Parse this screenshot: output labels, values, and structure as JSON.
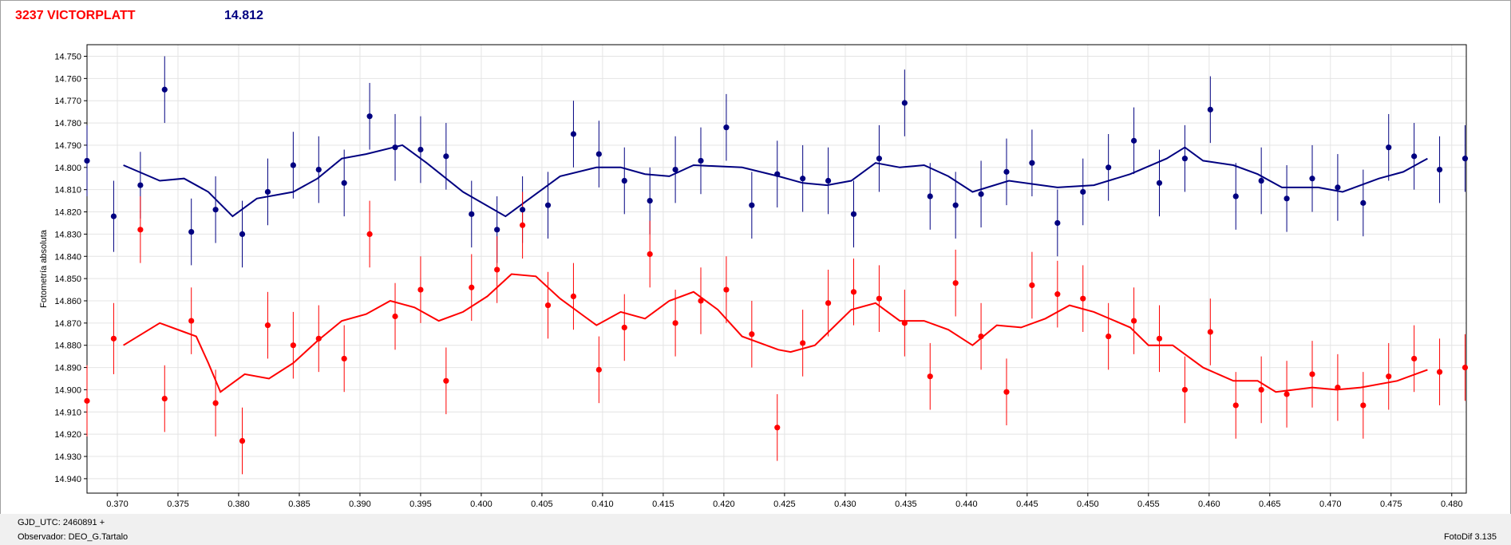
{
  "header": {
    "star_name": "3237 VICTORPLATT",
    "magnitude": "14.812"
  },
  "footer": {
    "gjd": "GJD_UTC: 2460891 +",
    "observer": "Observador: DEO_G.Tartalo",
    "version": "FotoDif 3.135"
  },
  "colors": {
    "blue_series": "#000080",
    "red_series": "#ff0000"
  },
  "chart_data": {
    "type": "scatter",
    "title": "",
    "xlabel": "",
    "ylabel": "Fotometría absoluta",
    "xlim": [
      0.3675,
      0.4812
    ],
    "ylim": [
      14.9465,
      14.7448
    ],
    "y_inverted": true,
    "grid": true,
    "x_ticks": [
      0.37,
      0.375,
      0.38,
      0.385,
      0.39,
      0.395,
      0.4,
      0.405,
      0.41,
      0.415,
      0.42,
      0.425,
      0.43,
      0.435,
      0.44,
      0.445,
      0.45,
      0.455,
      0.46,
      0.465,
      0.47,
      0.475,
      0.48
    ],
    "x_tick_labels": [
      "0.370",
      "0.375",
      "0.380",
      "0.385",
      "0.390",
      "0.395",
      "0.400",
      "0.405",
      "0.410",
      "0.415",
      "0.420",
      "0.425",
      "0.430",
      "0.435",
      "0.440",
      "0.445",
      "0.450",
      "0.455",
      "0.460",
      "0.465",
      "0.470",
      "0.475",
      "0.480"
    ],
    "y_ticks": [
      14.75,
      14.76,
      14.77,
      14.78,
      14.79,
      14.8,
      14.81,
      14.82,
      14.83,
      14.84,
      14.85,
      14.86,
      14.87,
      14.88,
      14.89,
      14.9,
      14.91,
      14.92,
      14.93,
      14.94
    ],
    "y_tick_labels": [
      "14.750",
      "14.760",
      "14.770",
      "14.780",
      "14.790",
      "14.800",
      "14.810",
      "14.820",
      "14.830",
      "14.840",
      "14.850",
      "14.860",
      "14.870",
      "14.880",
      "14.890",
      "14.900",
      "14.910",
      "14.920",
      "14.930",
      "14.940"
    ],
    "series": [
      {
        "color": "#000080",
        "points": [
          [
            0.3675,
            14.797,
            0.016
          ],
          [
            0.3697,
            14.822,
            0.016
          ],
          [
            0.3719,
            14.808,
            0.015
          ],
          [
            0.3739,
            14.765,
            0.015
          ],
          [
            0.3761,
            14.829,
            0.015
          ],
          [
            0.3781,
            14.819,
            0.015
          ],
          [
            0.3803,
            14.83,
            0.015
          ],
          [
            0.3824,
            14.811,
            0.015
          ],
          [
            0.3845,
            14.799,
            0.015
          ],
          [
            0.3866,
            14.801,
            0.015
          ],
          [
            0.3887,
            14.807,
            0.015
          ],
          [
            0.3908,
            14.777,
            0.015
          ],
          [
            0.3929,
            14.791,
            0.015
          ],
          [
            0.395,
            14.792,
            0.015
          ],
          [
            0.3971,
            14.795,
            0.015
          ],
          [
            0.3992,
            14.821,
            0.015
          ],
          [
            0.4013,
            14.828,
            0.015
          ],
          [
            0.4034,
            14.819,
            0.015
          ],
          [
            0.4055,
            14.817,
            0.015
          ],
          [
            0.4076,
            14.785,
            0.015
          ],
          [
            0.4097,
            14.794,
            0.015
          ],
          [
            0.4118,
            14.806,
            0.015
          ],
          [
            0.4139,
            14.815,
            0.015
          ],
          [
            0.416,
            14.801,
            0.015
          ],
          [
            0.4181,
            14.797,
            0.015
          ],
          [
            0.4202,
            14.782,
            0.015
          ],
          [
            0.4223,
            14.817,
            0.015
          ],
          [
            0.4244,
            14.803,
            0.015
          ],
          [
            0.4265,
            14.805,
            0.015
          ],
          [
            0.4286,
            14.806,
            0.015
          ],
          [
            0.4307,
            14.821,
            0.015
          ],
          [
            0.4328,
            14.796,
            0.015
          ],
          [
            0.4349,
            14.771,
            0.015
          ],
          [
            0.437,
            14.813,
            0.015
          ],
          [
            0.4391,
            14.817,
            0.015
          ],
          [
            0.4412,
            14.812,
            0.015
          ],
          [
            0.4433,
            14.802,
            0.015
          ],
          [
            0.4454,
            14.798,
            0.015
          ],
          [
            0.4475,
            14.825,
            0.015
          ],
          [
            0.4496,
            14.811,
            0.015
          ],
          [
            0.4517,
            14.8,
            0.015
          ],
          [
            0.4538,
            14.788,
            0.015
          ],
          [
            0.4559,
            14.807,
            0.015
          ],
          [
            0.458,
            14.796,
            0.015
          ],
          [
            0.4601,
            14.774,
            0.015
          ],
          [
            0.4622,
            14.813,
            0.015
          ],
          [
            0.4643,
            14.806,
            0.015
          ],
          [
            0.4664,
            14.814,
            0.015
          ],
          [
            0.4685,
            14.805,
            0.015
          ],
          [
            0.4706,
            14.809,
            0.015
          ],
          [
            0.4727,
            14.816,
            0.015
          ],
          [
            0.4748,
            14.791,
            0.015
          ],
          [
            0.4769,
            14.795,
            0.015
          ],
          [
            0.479,
            14.801,
            0.015
          ],
          [
            0.4811,
            14.796,
            0.015
          ]
        ],
        "fit": [
          [
            0.3705,
            14.799
          ],
          [
            0.3735,
            14.806
          ],
          [
            0.3755,
            14.805
          ],
          [
            0.3775,
            14.811
          ],
          [
            0.3795,
            14.822
          ],
          [
            0.3815,
            14.814
          ],
          [
            0.3845,
            14.811
          ],
          [
            0.3865,
            14.805
          ],
          [
            0.3885,
            14.796
          ],
          [
            0.3905,
            14.794
          ],
          [
            0.3935,
            14.79
          ],
          [
            0.3955,
            14.798
          ],
          [
            0.3985,
            14.811
          ],
          [
            0.402,
            14.822
          ],
          [
            0.4045,
            14.812
          ],
          [
            0.4065,
            14.804
          ],
          [
            0.4095,
            14.8
          ],
          [
            0.4115,
            14.8
          ],
          [
            0.4135,
            14.803
          ],
          [
            0.4155,
            14.804
          ],
          [
            0.4175,
            14.799
          ],
          [
            0.4215,
            14.8
          ],
          [
            0.4245,
            14.804
          ],
          [
            0.4265,
            14.807
          ],
          [
            0.4285,
            14.808
          ],
          [
            0.4305,
            14.806
          ],
          [
            0.4325,
            14.798
          ],
          [
            0.4345,
            14.8
          ],
          [
            0.4365,
            14.799
          ],
          [
            0.4385,
            14.804
          ],
          [
            0.4405,
            14.811
          ],
          [
            0.4435,
            14.806
          ],
          [
            0.4475,
            14.809
          ],
          [
            0.4505,
            14.808
          ],
          [
            0.4535,
            14.803
          ],
          [
            0.4565,
            14.796
          ],
          [
            0.458,
            14.791
          ],
          [
            0.4595,
            14.797
          ],
          [
            0.462,
            14.799
          ],
          [
            0.464,
            14.803
          ],
          [
            0.466,
            14.809
          ],
          [
            0.469,
            14.809
          ],
          [
            0.471,
            14.811
          ],
          [
            0.474,
            14.805
          ],
          [
            0.476,
            14.802
          ],
          [
            0.478,
            14.796
          ]
        ]
      },
      {
        "color": "#ff0000",
        "points": [
          [
            0.3675,
            14.905,
            0.016
          ],
          [
            0.3697,
            14.877,
            0.016
          ],
          [
            0.3719,
            14.828,
            0.015
          ],
          [
            0.3739,
            14.904,
            0.015
          ],
          [
            0.3761,
            14.869,
            0.015
          ],
          [
            0.3781,
            14.906,
            0.015
          ],
          [
            0.3803,
            14.923,
            0.015
          ],
          [
            0.3824,
            14.871,
            0.015
          ],
          [
            0.3845,
            14.88,
            0.015
          ],
          [
            0.3866,
            14.877,
            0.015
          ],
          [
            0.3887,
            14.886,
            0.015
          ],
          [
            0.3908,
            14.83,
            0.015
          ],
          [
            0.3929,
            14.867,
            0.015
          ],
          [
            0.395,
            14.855,
            0.015
          ],
          [
            0.3971,
            14.896,
            0.015
          ],
          [
            0.3992,
            14.854,
            0.015
          ],
          [
            0.4013,
            14.846,
            0.015
          ],
          [
            0.4034,
            14.826,
            0.015
          ],
          [
            0.4055,
            14.862,
            0.015
          ],
          [
            0.4076,
            14.858,
            0.015
          ],
          [
            0.4097,
            14.891,
            0.015
          ],
          [
            0.4118,
            14.872,
            0.015
          ],
          [
            0.4139,
            14.839,
            0.015
          ],
          [
            0.416,
            14.87,
            0.015
          ],
          [
            0.4181,
            14.86,
            0.015
          ],
          [
            0.4202,
            14.855,
            0.015
          ],
          [
            0.4223,
            14.875,
            0.015
          ],
          [
            0.4244,
            14.917,
            0.015
          ],
          [
            0.4265,
            14.879,
            0.015
          ],
          [
            0.4286,
            14.861,
            0.015
          ],
          [
            0.4307,
            14.856,
            0.015
          ],
          [
            0.4328,
            14.859,
            0.015
          ],
          [
            0.4349,
            14.87,
            0.015
          ],
          [
            0.437,
            14.894,
            0.015
          ],
          [
            0.4391,
            14.852,
            0.015
          ],
          [
            0.4412,
            14.876,
            0.015
          ],
          [
            0.4433,
            14.901,
            0.015
          ],
          [
            0.4454,
            14.853,
            0.015
          ],
          [
            0.4475,
            14.857,
            0.015
          ],
          [
            0.4496,
            14.859,
            0.015
          ],
          [
            0.4517,
            14.876,
            0.015
          ],
          [
            0.4538,
            14.869,
            0.015
          ],
          [
            0.4559,
            14.877,
            0.015
          ],
          [
            0.458,
            14.9,
            0.015
          ],
          [
            0.4601,
            14.874,
            0.015
          ],
          [
            0.4622,
            14.907,
            0.015
          ],
          [
            0.4643,
            14.9,
            0.015
          ],
          [
            0.4664,
            14.902,
            0.015
          ],
          [
            0.4685,
            14.893,
            0.015
          ],
          [
            0.4706,
            14.899,
            0.015
          ],
          [
            0.4727,
            14.907,
            0.015
          ],
          [
            0.4748,
            14.894,
            0.015
          ],
          [
            0.4769,
            14.886,
            0.015
          ],
          [
            0.479,
            14.892,
            0.015
          ],
          [
            0.4811,
            14.89,
            0.015
          ]
        ],
        "fit": [
          [
            0.3705,
            14.88
          ],
          [
            0.3735,
            14.87
          ],
          [
            0.3755,
            14.874
          ],
          [
            0.3765,
            14.876
          ],
          [
            0.3775,
            14.888
          ],
          [
            0.3785,
            14.901
          ],
          [
            0.3805,
            14.893
          ],
          [
            0.3825,
            14.895
          ],
          [
            0.3845,
            14.888
          ],
          [
            0.3865,
            14.878
          ],
          [
            0.3885,
            14.869
          ],
          [
            0.3905,
            14.866
          ],
          [
            0.3925,
            14.86
          ],
          [
            0.3945,
            14.863
          ],
          [
            0.3965,
            14.869
          ],
          [
            0.3985,
            14.865
          ],
          [
            0.4005,
            14.858
          ],
          [
            0.4025,
            14.848
          ],
          [
            0.4045,
            14.849
          ],
          [
            0.4065,
            14.859
          ],
          [
            0.4085,
            14.867
          ],
          [
            0.4095,
            14.871
          ],
          [
            0.4115,
            14.865
          ],
          [
            0.4135,
            14.868
          ],
          [
            0.4155,
            14.86
          ],
          [
            0.4175,
            14.856
          ],
          [
            0.4195,
            14.864
          ],
          [
            0.4215,
            14.876
          ],
          [
            0.4245,
            14.882
          ],
          [
            0.4255,
            14.883
          ],
          [
            0.4275,
            14.88
          ],
          [
            0.4305,
            14.864
          ],
          [
            0.4325,
            14.861
          ],
          [
            0.4345,
            14.869
          ],
          [
            0.4365,
            14.869
          ],
          [
            0.4385,
            14.873
          ],
          [
            0.4405,
            14.88
          ],
          [
            0.4425,
            14.871
          ],
          [
            0.4445,
            14.872
          ],
          [
            0.4465,
            14.868
          ],
          [
            0.4485,
            14.862
          ],
          [
            0.4505,
            14.865
          ],
          [
            0.4535,
            14.872
          ],
          [
            0.455,
            14.88
          ],
          [
            0.457,
            14.88
          ],
          [
            0.4595,
            14.89
          ],
          [
            0.462,
            14.896
          ],
          [
            0.464,
            14.896
          ],
          [
            0.4655,
            14.901
          ],
          [
            0.4685,
            14.899
          ],
          [
            0.4705,
            14.9
          ],
          [
            0.4725,
            14.899
          ],
          [
            0.4755,
            14.896
          ],
          [
            0.478,
            14.891
          ]
        ]
      }
    ]
  }
}
